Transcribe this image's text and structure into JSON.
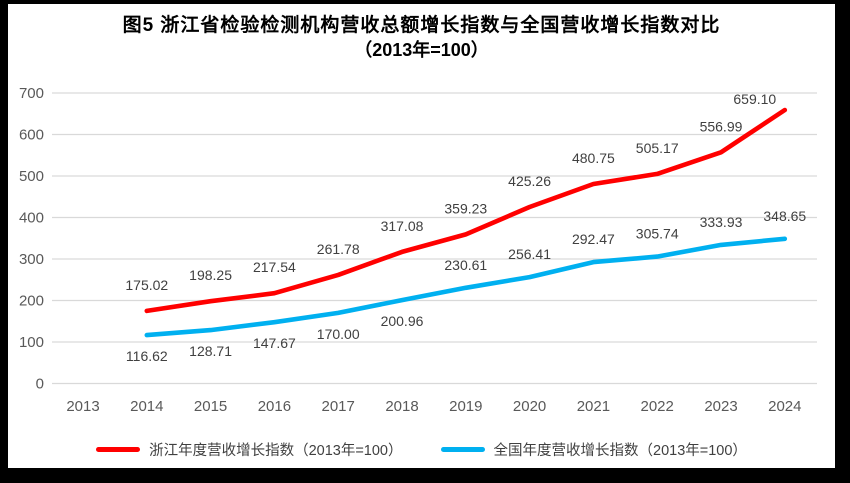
{
  "figure": {
    "title_line1": "图5  浙江省检验检测机构营收总额增长指数与全国营收增长指数对比",
    "title_line2": "（2013年=100）"
  },
  "chart_data": {
    "type": "line",
    "categories": [
      "2013",
      "2014",
      "2015",
      "2016",
      "2017",
      "2018",
      "2019",
      "2020",
      "2021",
      "2022",
      "2023",
      "2024"
    ],
    "series": [
      {
        "name": "浙江年度营收增长指数（2013年=100）",
        "color": "#FF0000",
        "values": [
          null,
          175.02,
          198.25,
          217.54,
          261.78,
          317.08,
          359.23,
          425.26,
          480.75,
          505.17,
          556.99,
          659.1
        ]
      },
      {
        "name": "全国年度营收增长指数（2013年=100）",
        "color": "#00B0F0",
        "values": [
          null,
          116.62,
          128.71,
          147.67,
          170.0,
          200.96,
          230.61,
          256.41,
          292.47,
          305.74,
          333.93,
          348.65
        ]
      }
    ],
    "ylim": [
      0,
      700
    ],
    "ytick_step": 100,
    "grid": true,
    "legend_position": "bottom",
    "data_labels": true,
    "colors": {
      "grid": "#d9d9d9",
      "axis_text": "#595959",
      "data_label_text": "#404040"
    }
  }
}
